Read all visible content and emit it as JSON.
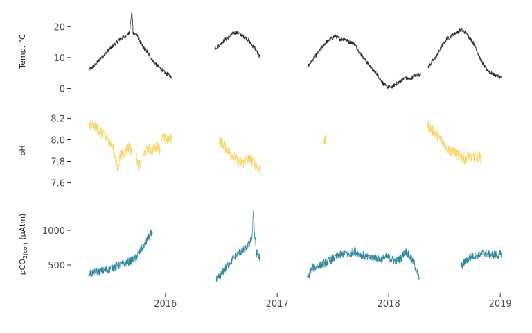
{
  "chart_data": {
    "type": "line",
    "x_axis": {
      "ticks": [
        {
          "value": "2016-01-01",
          "label": "2016"
        },
        {
          "value": "2017-01-01",
          "label": "2017"
        },
        {
          "value": "2018-01-01",
          "label": "2018"
        },
        {
          "value": "2019-01-01",
          "label": "2019"
        }
      ],
      "range": [
        "2015-03-15",
        "2019-02-15"
      ]
    },
    "panels": [
      {
        "id": "temp",
        "ylabel": "Temp. °C",
        "ylabel_sub": "",
        "ylabel_after": "",
        "color": "#2b2b2b",
        "ylim": [
          -1,
          25
        ],
        "yticks": [
          0,
          10,
          20
        ],
        "segments": [
          [
            [
              "2015-04-25",
              6
            ],
            [
              "2015-05-15",
              7.5
            ],
            [
              "2015-06-05",
              10
            ],
            [
              "2015-06-25",
              12
            ],
            [
              "2015-07-15",
              14
            ],
            [
              "2015-08-05",
              16
            ],
            [
              "2015-08-25",
              17
            ],
            [
              "2015-09-05",
              18
            ],
            [
              "2015-09-13",
              25
            ],
            [
              "2015-09-17",
              18
            ],
            [
              "2015-10-01",
              17
            ],
            [
              "2015-10-15",
              14
            ],
            [
              "2015-11-01",
              12
            ],
            [
              "2015-11-20",
              9
            ],
            [
              "2015-12-10",
              7
            ],
            [
              "2015-12-31",
              5
            ],
            [
              "2016-01-10",
              4.5
            ],
            [
              "2016-01-20",
              3.5
            ]
          ],
          [
            [
              "2016-06-10",
              13
            ],
            [
              "2016-06-25",
              14
            ],
            [
              "2016-07-10",
              15.5
            ],
            [
              "2016-07-25",
              16.5
            ],
            [
              "2016-08-10",
              18
            ],
            [
              "2016-08-25",
              18
            ],
            [
              "2016-09-10",
              17
            ],
            [
              "2016-09-25",
              16
            ],
            [
              "2016-10-10",
              14
            ],
            [
              "2016-10-20",
              13
            ],
            [
              "2016-10-31",
              11
            ],
            [
              "2016-11-05",
              10
            ]
          ],
          [
            [
              "2017-04-10",
              7
            ],
            [
              "2017-04-25",
              9
            ],
            [
              "2017-05-10",
              11
            ],
            [
              "2017-05-25",
              13
            ],
            [
              "2017-06-10",
              15
            ],
            [
              "2017-06-25",
              16
            ],
            [
              "2017-07-10",
              17
            ],
            [
              "2017-07-25",
              16
            ],
            [
              "2017-08-10",
              16
            ],
            [
              "2017-08-25",
              15
            ],
            [
              "2017-09-10",
              14.5
            ],
            [
              "2017-09-25",
              12
            ],
            [
              "2017-10-10",
              10
            ],
            [
              "2017-10-25",
              8
            ],
            [
              "2017-11-10",
              6
            ],
            [
              "2017-11-25",
              4.5
            ],
            [
              "2017-12-10",
              2
            ],
            [
              "2017-12-25",
              0.5
            ],
            [
              "2018-01-10",
              0.5
            ],
            [
              "2018-01-25",
              1.5
            ],
            [
              "2018-02-10",
              2.5
            ],
            [
              "2018-02-25",
              3.5
            ],
            [
              "2018-03-10",
              3
            ],
            [
              "2018-03-25",
              4
            ],
            [
              "2018-04-05",
              4.5
            ],
            [
              "2018-04-15",
              4.5
            ]
          ],
          [
            [
              "2018-05-10",
              7
            ],
            [
              "2018-05-25",
              9
            ],
            [
              "2018-06-10",
              11
            ],
            [
              "2018-06-25",
              14
            ],
            [
              "2018-07-10",
              16
            ],
            [
              "2018-07-25",
              17
            ],
            [
              "2018-08-10",
              18
            ],
            [
              "2018-08-25",
              19
            ],
            [
              "2018-09-10",
              18
            ],
            [
              "2018-09-25",
              16
            ],
            [
              "2018-10-10",
              14
            ],
            [
              "2018-10-25",
              10
            ],
            [
              "2018-11-10",
              7
            ],
            [
              "2018-11-25",
              5.5
            ],
            [
              "2018-12-10",
              4.5
            ],
            [
              "2018-12-25",
              4
            ],
            [
              "2019-01-05",
              3.5
            ]
          ]
        ]
      },
      {
        "id": "ph",
        "ylabel": "pH",
        "ylabel_sub": "",
        "ylabel_after": "",
        "color": "#f7d76d",
        "ylim": [
          7.52,
          8.28
        ],
        "yticks": [
          7.6,
          7.8,
          8.0,
          8.2
        ],
        "tick_decimals": 1,
        "segments": [
          [
            [
              "2015-04-25",
              8.15
            ],
            [
              "2015-05-10",
              8.12
            ],
            [
              "2015-05-25",
              8.1
            ],
            [
              "2015-06-10",
              8.05
            ],
            [
              "2015-06-25",
              8.0
            ],
            [
              "2015-07-10",
              7.95
            ],
            [
              "2015-07-20",
              7.85
            ],
            [
              "2015-07-28",
              7.72
            ],
            [
              "2015-08-05",
              7.85
            ],
            [
              "2015-08-20",
              7.88
            ],
            [
              "2015-09-05",
              7.95
            ],
            [
              "2015-09-15",
              7.85
            ]
          ],
          [
            [
              "2015-09-28",
              7.83
            ],
            [
              "2015-10-05",
              7.74
            ],
            [
              "2015-10-12",
              7.8
            ]
          ],
          [
            [
              "2015-10-20",
              7.85
            ],
            [
              "2015-11-05",
              7.92
            ],
            [
              "2015-11-20",
              7.9
            ],
            [
              "2015-12-05",
              7.95
            ],
            [
              "2015-12-15",
              7.9
            ]
          ],
          [
            [
              "2015-12-20",
              8.02
            ],
            [
              "2016-01-05",
              8.0
            ],
            [
              "2016-01-20",
              8.02
            ]
          ],
          [
            [
              "2016-06-25",
              8.0
            ],
            [
              "2016-07-10",
              7.95
            ],
            [
              "2016-07-25",
              7.9
            ],
            [
              "2016-08-10",
              7.85
            ],
            [
              "2016-08-25",
              7.8
            ],
            [
              "2016-09-10",
              7.78
            ],
            [
              "2016-09-25",
              7.82
            ],
            [
              "2016-10-10",
              7.8
            ],
            [
              "2016-10-25",
              7.76
            ],
            [
              "2016-11-05",
              7.72
            ]
          ],
          [
            [
              "2017-06-01",
              8.02
            ],
            [
              "2017-06-06",
              7.98
            ],
            [
              "2017-06-10",
              8.02
            ]
          ],
          [
            [
              "2018-05-05",
              8.15
            ],
            [
              "2018-05-20",
              8.1
            ],
            [
              "2018-06-05",
              8.05
            ],
            [
              "2018-06-20",
              8.0
            ],
            [
              "2018-07-05",
              7.95
            ],
            [
              "2018-07-20",
              7.9
            ],
            [
              "2018-08-05",
              7.88
            ],
            [
              "2018-08-20",
              7.85
            ],
            [
              "2018-09-05",
              7.82
            ],
            [
              "2018-09-20",
              7.85
            ],
            [
              "2018-10-05",
              7.83
            ],
            [
              "2018-10-20",
              7.85
            ],
            [
              "2018-10-31",
              7.82
            ]
          ]
        ]
      },
      {
        "id": "pco2",
        "ylabel": "pCO",
        "ylabel_sub": "2(cor)",
        "ylabel_after": " (μAtm)",
        "color": "#31889e",
        "ylim": [
          200,
          1400
        ],
        "yticks": [
          500,
          1000
        ],
        "segments": [
          [
            [
              "2015-04-25",
              380
            ],
            [
              "2015-05-15",
              390
            ],
            [
              "2015-06-05",
              410
            ],
            [
              "2015-06-25",
              430
            ],
            [
              "2015-07-15",
              470
            ],
            [
              "2015-08-05",
              500
            ],
            [
              "2015-08-25",
              530
            ],
            [
              "2015-09-10",
              560
            ],
            [
              "2015-09-25",
              600
            ],
            [
              "2015-10-10",
              700
            ],
            [
              "2015-10-25",
              800
            ],
            [
              "2015-11-10",
              920
            ],
            [
              "2015-11-20",
              980
            ]
          ],
          [
            [
              "2016-06-15",
              270
            ],
            [
              "2016-06-30",
              360
            ],
            [
              "2016-07-15",
              450
            ],
            [
              "2016-07-30",
              540
            ],
            [
              "2016-08-15",
              620
            ],
            [
              "2016-08-30",
              680
            ],
            [
              "2016-09-15",
              720
            ],
            [
              "2016-09-30",
              800
            ],
            [
              "2016-10-10",
              900
            ],
            [
              "2016-10-15",
              1300
            ],
            [
              "2016-10-18",
              950
            ],
            [
              "2016-10-25",
              680
            ],
            [
              "2016-11-05",
              600
            ]
          ],
          [
            [
              "2017-04-10",
              300
            ],
            [
              "2017-04-25",
              460
            ],
            [
              "2017-05-10",
              470
            ],
            [
              "2017-05-25",
              500
            ],
            [
              "2017-06-10",
              540
            ],
            [
              "2017-06-25",
              570
            ],
            [
              "2017-07-10",
              610
            ],
            [
              "2017-07-25",
              640
            ],
            [
              "2017-08-10",
              680
            ],
            [
              "2017-08-25",
              650
            ],
            [
              "2017-09-10",
              700
            ],
            [
              "2017-09-25",
              660
            ],
            [
              "2017-10-10",
              640
            ],
            [
              "2017-10-25",
              600
            ],
            [
              "2017-11-10",
              620
            ],
            [
              "2017-11-25",
              600
            ],
            [
              "2017-12-10",
              580
            ],
            [
              "2017-12-25",
              620
            ],
            [
              "2018-01-10",
              580
            ],
            [
              "2018-01-25",
              560
            ],
            [
              "2018-02-10",
              600
            ],
            [
              "2018-02-25",
              700
            ],
            [
              "2018-03-10",
              620
            ],
            [
              "2018-03-25",
              520
            ],
            [
              "2018-04-05",
              380
            ],
            [
              "2018-04-10",
              310
            ]
          ],
          [
            [
              "2018-08-25",
              480
            ],
            [
              "2018-09-10",
              560
            ],
            [
              "2018-09-25",
              610
            ],
            [
              "2018-10-10",
              640
            ],
            [
              "2018-10-25",
              650
            ],
            [
              "2018-11-10",
              680
            ],
            [
              "2018-11-25",
              650
            ],
            [
              "2018-12-10",
              650
            ],
            [
              "2018-12-25",
              640
            ],
            [
              "2019-01-05",
              660
            ]
          ]
        ]
      }
    ]
  }
}
